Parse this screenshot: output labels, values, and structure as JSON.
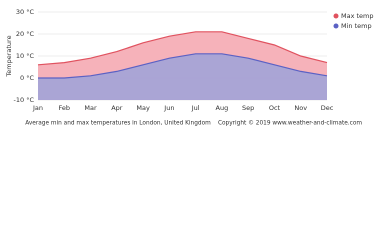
{
  "chart_data": {
    "type": "area",
    "y_label": "Temperature",
    "caption": "Average min and max temperatures in London, United Kingdom",
    "copyright": "Copyright © 2019 www.weather-and-climate.com",
    "categories": [
      "Jan",
      "Feb",
      "Mar",
      "Apr",
      "May",
      "Jun",
      "Jul",
      "Aug",
      "Sep",
      "Oct",
      "Nov",
      "Dec"
    ],
    "series": [
      {
        "name": "Max temp",
        "color": "#e0525f",
        "fill": "#f5aab3",
        "values": [
          6,
          7,
          9,
          12,
          16,
          19,
          21,
          21,
          18,
          15,
          10,
          7
        ]
      },
      {
        "name": "Min temp",
        "color": "#5b61c4",
        "fill": "#a2a3d8",
        "values": [
          0,
          0,
          1,
          3,
          6,
          9,
          11,
          11,
          9,
          6,
          3,
          1
        ]
      }
    ],
    "ylim": [
      -10,
      30
    ],
    "yticks": [
      {
        "value": -10,
        "label": "-10 °C"
      },
      {
        "value": 0,
        "label": "0 °C"
      },
      {
        "value": 10,
        "label": "10 °C"
      },
      {
        "value": 20,
        "label": "20 °C"
      },
      {
        "value": 30,
        "label": "30 °C"
      }
    ],
    "grid": true,
    "legend": "top-right"
  }
}
